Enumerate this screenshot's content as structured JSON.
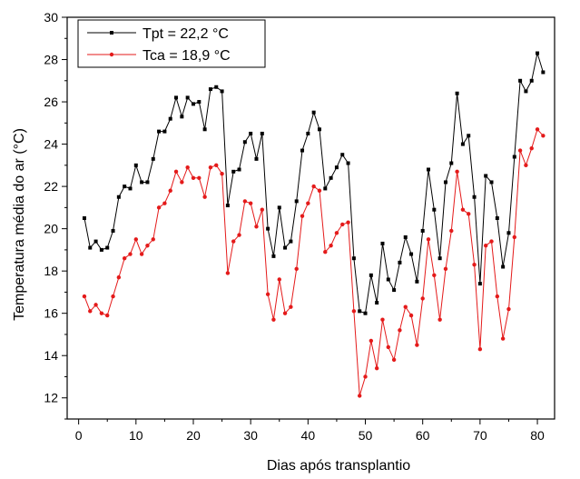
{
  "chart_data": {
    "type": "line",
    "title": "",
    "xlabel": "Dias após transplantio",
    "ylabel": "Temperatura média do ar (°C)",
    "xlim": [
      -2,
      83
    ],
    "ylim": [
      11,
      30
    ],
    "x_ticks": [
      0,
      10,
      20,
      30,
      40,
      50,
      60,
      70,
      80
    ],
    "y_ticks": [
      12,
      14,
      16,
      18,
      20,
      22,
      24,
      26,
      28,
      30
    ],
    "legend_position": "top-left",
    "grid": false,
    "series": [
      {
        "name": "Tpt = 22,2 °C",
        "color": "#000000",
        "marker": "square",
        "x": [
          1,
          2,
          3,
          4,
          5,
          6,
          7,
          8,
          9,
          10,
          11,
          12,
          13,
          14,
          15,
          16,
          17,
          18,
          19,
          20,
          21,
          22,
          23,
          24,
          25,
          26,
          27,
          28,
          29,
          30,
          31,
          32,
          33,
          34,
          35,
          36,
          37,
          38,
          39,
          40,
          41,
          42,
          43,
          44,
          45,
          46,
          47,
          48,
          49,
          50,
          51,
          52,
          53,
          54,
          55,
          56,
          57,
          58,
          59,
          60,
          61,
          62,
          63,
          64,
          65,
          66,
          67,
          68,
          69,
          70,
          71,
          72,
          73,
          74,
          75,
          76,
          77,
          78,
          79,
          80,
          81
        ],
        "values": [
          20.5,
          19.1,
          19.4,
          19.0,
          19.1,
          19.9,
          21.5,
          22.0,
          21.9,
          23.0,
          22.2,
          22.2,
          23.3,
          24.6,
          24.6,
          25.2,
          26.2,
          25.3,
          26.2,
          25.9,
          26.0,
          24.7,
          26.6,
          26.7,
          26.5,
          21.1,
          22.7,
          22.8,
          24.1,
          24.5,
          23.3,
          24.5,
          20.0,
          18.7,
          21.0,
          19.1,
          19.4,
          21.3,
          23.7,
          24.5,
          25.5,
          24.7,
          21.9,
          22.4,
          22.9,
          23.5,
          23.1,
          18.6,
          16.1,
          16.0,
          17.8,
          16.5,
          19.3,
          17.6,
          17.1,
          18.4,
          19.6,
          18.8,
          17.5,
          19.9,
          22.8,
          20.9,
          18.6,
          22.2,
          23.1,
          26.4,
          24.0,
          24.4,
          21.5,
          17.4,
          22.5,
          22.2,
          20.5,
          18.2,
          19.8,
          23.4,
          27.0,
          26.5,
          27.0,
          28.3,
          27.4
        ]
      },
      {
        "name": "Tca = 18,9 °C",
        "color": "#e41a1a",
        "marker": "circle",
        "x": [
          1,
          2,
          3,
          4,
          5,
          6,
          7,
          8,
          9,
          10,
          11,
          12,
          13,
          14,
          15,
          16,
          17,
          18,
          19,
          20,
          21,
          22,
          23,
          24,
          25,
          26,
          27,
          28,
          29,
          30,
          31,
          32,
          33,
          34,
          35,
          36,
          37,
          38,
          39,
          40,
          41,
          42,
          43,
          44,
          45,
          46,
          47,
          48,
          49,
          50,
          51,
          52,
          53,
          54,
          55,
          56,
          57,
          58,
          59,
          60,
          61,
          62,
          63,
          64,
          65,
          66,
          67,
          68,
          69,
          70,
          71,
          72,
          73,
          74,
          75,
          76,
          77,
          78,
          79,
          80,
          81
        ],
        "values": [
          16.8,
          16.1,
          16.4,
          16.0,
          15.9,
          16.8,
          17.7,
          18.6,
          18.8,
          19.5,
          18.8,
          19.2,
          19.5,
          21.0,
          21.2,
          21.8,
          22.7,
          22.2,
          22.9,
          22.4,
          22.4,
          21.5,
          22.9,
          23.0,
          22.6,
          17.9,
          19.4,
          19.7,
          21.3,
          21.2,
          20.1,
          20.9,
          16.9,
          15.7,
          17.6,
          16.0,
          16.3,
          18.1,
          20.6,
          21.2,
          22.0,
          21.8,
          18.9,
          19.2,
          19.8,
          20.2,
          20.3,
          16.1,
          12.1,
          13.0,
          14.7,
          13.4,
          15.7,
          14.4,
          13.8,
          15.2,
          16.3,
          15.9,
          14.5,
          16.7,
          19.5,
          17.8,
          15.7,
          18.1,
          19.9,
          22.7,
          20.9,
          20.7,
          18.3,
          14.3,
          19.2,
          19.4,
          16.8,
          14.8,
          16.2,
          19.6,
          23.7,
          23.0,
          23.8,
          24.7,
          24.4
        ]
      }
    ]
  }
}
